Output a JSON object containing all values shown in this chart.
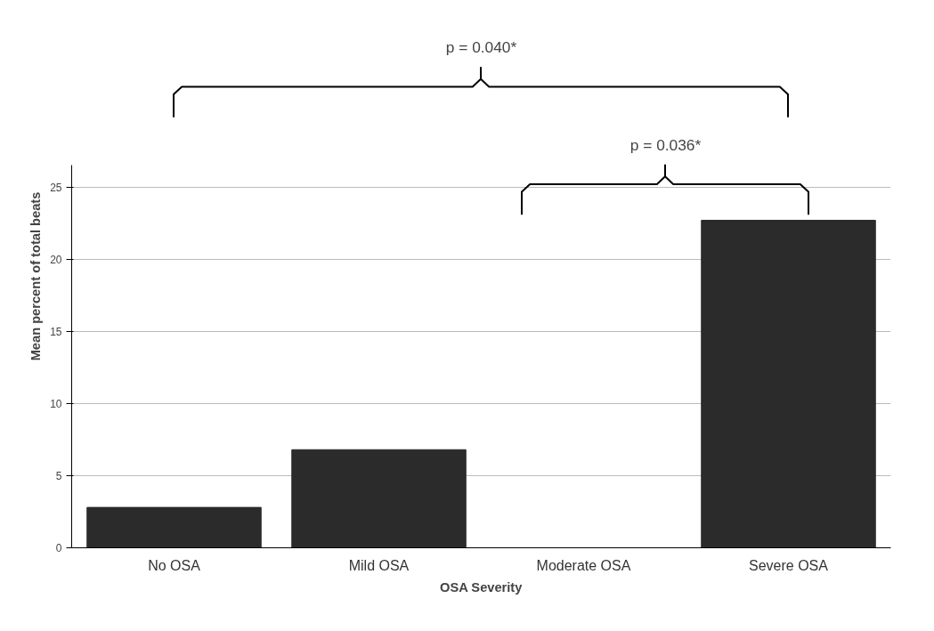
{
  "chart_data": {
    "type": "bar",
    "xlabel": "OSA Severity",
    "ylabel": "Mean percent of total beats",
    "categories": [
      "No OSA",
      "Mild OSA",
      "Moderate OSA",
      "Severe OSA"
    ],
    "values": [
      2.8,
      6.8,
      0,
      22.7
    ],
    "color": "#2b2b2b",
    "ylim": [
      0,
      26.5
    ],
    "yticks": [
      0,
      5,
      10,
      15,
      20,
      25
    ],
    "grid": "y",
    "annotations": [
      "p = 0.040*",
      "p = 0.036*"
    ]
  }
}
